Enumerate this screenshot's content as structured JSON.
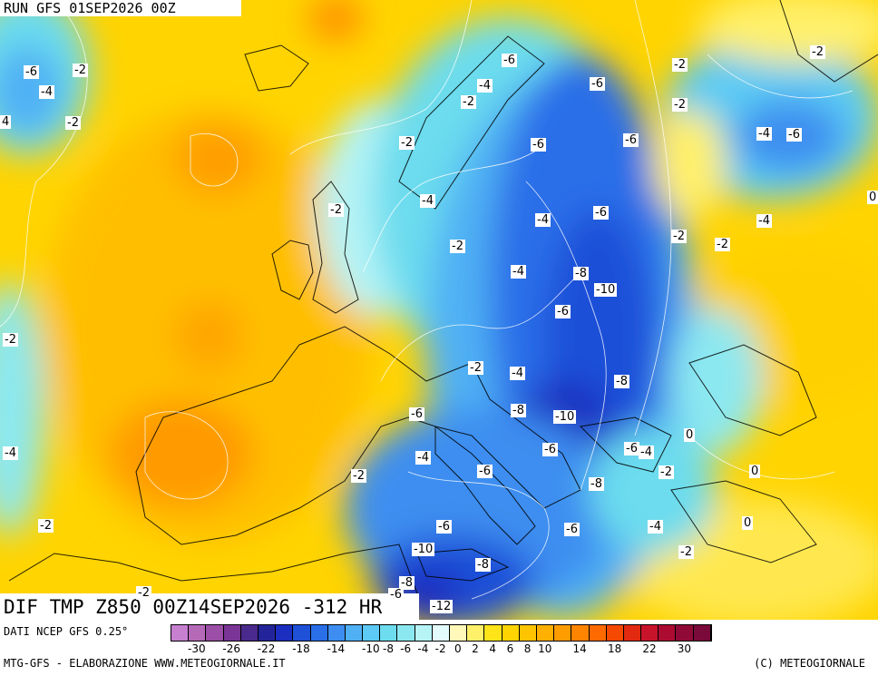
{
  "run_title": "RUN GFS 01SEP2026 00Z",
  "map_title": "DIF TMP Z850 00Z14SEP2026 -312 HR",
  "data_source": "DATI NCEP GFS 0.25°",
  "footer_left": "MTG-GFS - ELABORAZIONE WWW.METEOGIORNALE.IT",
  "footer_right": "(C) METEOGIORNALE",
  "contour_labels": [
    {
      "text": "-6"
    },
    {
      "text": "-2"
    },
    {
      "text": "-4"
    },
    {
      "text": "4"
    },
    {
      "text": "-2"
    },
    {
      "text": "-6"
    },
    {
      "text": "-4"
    },
    {
      "text": "-2"
    },
    {
      "text": "-2"
    },
    {
      "text": "-6"
    },
    {
      "text": "-6"
    },
    {
      "text": "-2"
    },
    {
      "text": "-2"
    },
    {
      "text": "-4"
    },
    {
      "text": "-6"
    },
    {
      "text": "-2"
    },
    {
      "text": "-4"
    },
    {
      "text": "-4"
    },
    {
      "text": "-6"
    },
    {
      "text": "-2"
    },
    {
      "text": "-2"
    },
    {
      "text": "-2"
    },
    {
      "text": "-4"
    },
    {
      "text": "-8"
    },
    {
      "text": "-10"
    },
    {
      "text": "-6"
    },
    {
      "text": "-2"
    },
    {
      "text": "-2"
    },
    {
      "text": "-4"
    },
    {
      "text": "-8"
    },
    {
      "text": "-6"
    },
    {
      "text": "-8"
    },
    {
      "text": "-10"
    },
    {
      "text": "0"
    },
    {
      "text": "-4"
    },
    {
      "text": "-6"
    },
    {
      "text": "-6"
    },
    {
      "text": "-4"
    },
    {
      "text": "-2"
    },
    {
      "text": "0"
    },
    {
      "text": "-2"
    },
    {
      "text": "-6"
    },
    {
      "text": "-8"
    },
    {
      "text": "-2"
    },
    {
      "text": "-6"
    },
    {
      "text": "-4"
    },
    {
      "text": "0"
    },
    {
      "text": "-6"
    },
    {
      "text": "-6"
    },
    {
      "text": "-10"
    },
    {
      "text": "-2"
    },
    {
      "text": "-8"
    },
    {
      "text": "-8"
    },
    {
      "text": "-2"
    },
    {
      "text": "-4"
    },
    {
      "text": "-6"
    },
    {
      "text": "-12"
    },
    {
      "text": "-4"
    },
    {
      "text": "-2"
    },
    {
      "text": "0"
    }
  ],
  "legend": {
    "colors": [
      "#c77fd0",
      "#b56ab8",
      "#9b4fa6",
      "#7a3596",
      "#4a2a8c",
      "#24249a",
      "#1b2ec0",
      "#1e50d8",
      "#2a6ee8",
      "#3d8ef0",
      "#4fb0f4",
      "#5ccaf4",
      "#6cdcee",
      "#8ce8f0",
      "#b6f4f6",
      "#e4fbfb",
      "#fff8b8",
      "#fff06a",
      "#ffe41a",
      "#ffd400",
      "#ffc400",
      "#ffb000",
      "#ff9c00",
      "#ff8400",
      "#ff6a00",
      "#f54800",
      "#e22a10",
      "#c8142a",
      "#ad0c32",
      "#900a38",
      "#7a0a3a"
    ],
    "tick_labels": [
      "-30",
      "-26",
      "-22",
      "-18",
      "-14",
      "-10",
      "-8",
      "-6",
      "-4",
      "-2",
      "0",
      "2",
      "4",
      "6",
      "8",
      "10",
      "14",
      "18",
      "22",
      "30"
    ]
  }
}
